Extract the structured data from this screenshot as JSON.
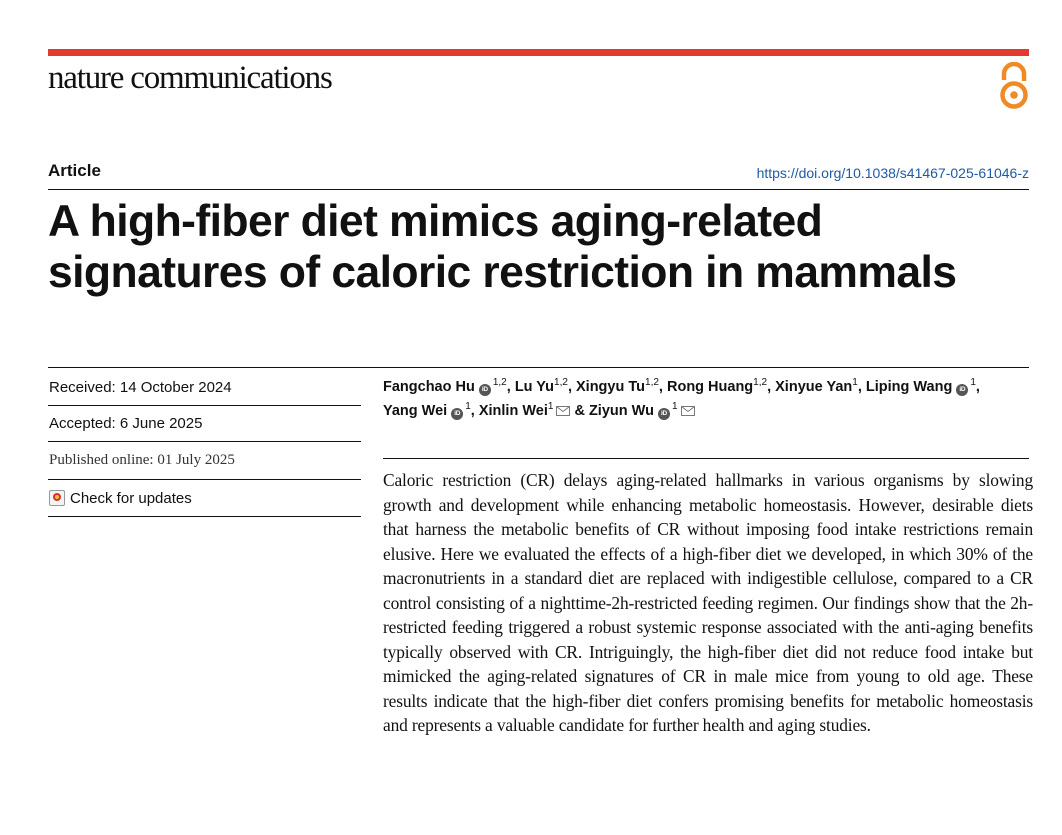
{
  "journal": {
    "name": "nature communications",
    "open_access_icon": "open-access-icon"
  },
  "article": {
    "type": "Article",
    "doi": "https://doi.org/10.1038/s41467-025-61046-z",
    "title": "A high-fiber diet mimics aging-related signatures of caloric restriction in mammals"
  },
  "dates": {
    "received": "Received: 14 October 2024",
    "accepted": "Accepted: 6 June 2025",
    "published": "Published online: 01 July 2025",
    "check_updates": "Check for updates"
  },
  "authors": [
    {
      "name": "Fangchao Hu",
      "aff": "1,2",
      "orcid": true,
      "email": false,
      "sep": ", "
    },
    {
      "name": "Lu Yu",
      "aff": "1,2",
      "orcid": false,
      "email": false,
      "sep": ", "
    },
    {
      "name": "Xingyu Tu",
      "aff": "1,2",
      "orcid": false,
      "email": false,
      "sep": ", "
    },
    {
      "name": "Rong Huang",
      "aff": "1,2",
      "orcid": false,
      "email": false,
      "sep": ", "
    },
    {
      "name": "Xinyue Yan",
      "aff": "1",
      "orcid": false,
      "email": false,
      "sep": ", "
    },
    {
      "name": "Liping Wang",
      "aff": "1",
      "orcid": true,
      "email": false,
      "sep": ", "
    },
    {
      "name": "Yang Wei",
      "aff": "1",
      "orcid": true,
      "email": false,
      "sep": ", "
    },
    {
      "name": "Xinlin Wei",
      "aff": "1",
      "orcid": false,
      "email": true,
      "sep": " & "
    },
    {
      "name": "Ziyun Wu",
      "aff": "1",
      "orcid": true,
      "email": true,
      "sep": ""
    }
  ],
  "orcid_label": "iD",
  "abstract": "Caloric restriction (CR) delays aging-related hallmarks in various organisms by slowing growth and development while enhancing metabolic homeostasis. However, desirable diets that harness the metabolic benefits of CR without imposing food intake restrictions remain elusive. Here we evaluated the effects of a high-fiber diet we developed, in which 30% of the macronutrients in a standard diet are replaced with indigestible cellulose, compared to a CR control consisting of a nighttime-2h-restricted feeding regimen. Our findings show that the 2h-restricted feeding triggered a robust systemic response associated with the anti-aging benefits typically observed with CR. Intriguingly, the high-fiber diet did not reduce food intake but mimicked the aging-related signatures of CR in male mice from young to old age. These results indicate that the high-fiber diet confers promising benefits for metabolic homeostasis and represents a valuable candidate for further health and aging studies.",
  "colors": {
    "accent_bar": "#e13c2d",
    "open_access": "#f08a24",
    "doi_link": "#1f5aa6"
  }
}
